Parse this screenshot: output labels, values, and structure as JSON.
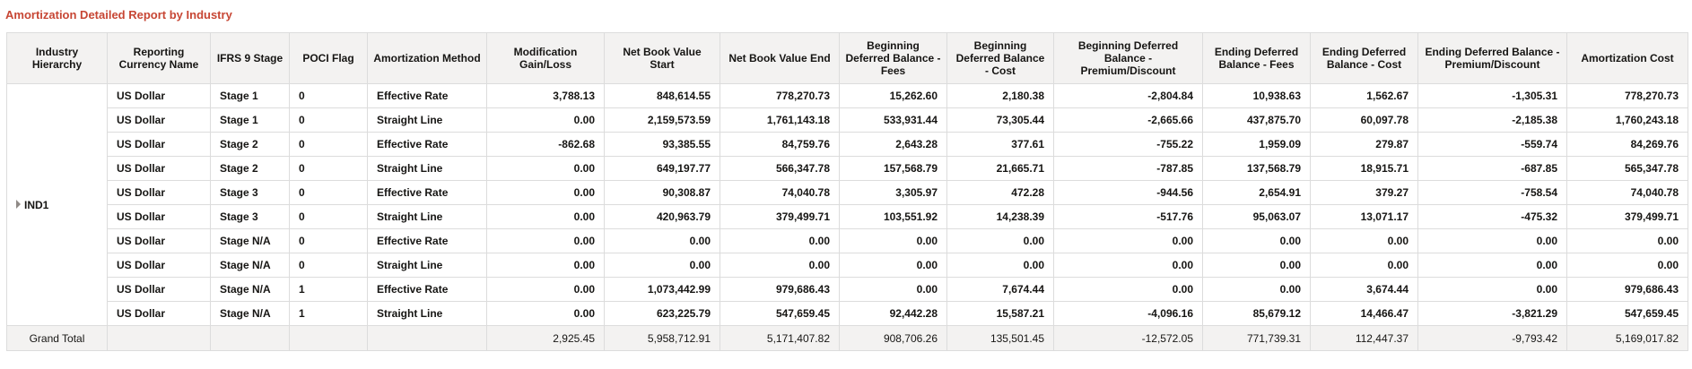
{
  "report": {
    "title": "Amortization Detailed Report by Industry",
    "columns": [
      "Industry Hierarchy",
      "Reporting Currency Name",
      "IFRS 9 Stage",
      "POCI Flag",
      "Amortization Method",
      "Modification Gain/Loss",
      "Net Book Value Start",
      "Net Book Value End",
      "Beginning Deferred Balance - Fees",
      "Beginning Deferred Balance - Cost",
      "Beginning Deferred Balance - Premium/Discount",
      "Ending Deferred Balance - Fees",
      "Ending Deferred Balance - Cost",
      "Ending Deferred Balance - Premium/Discount",
      "Amortization Cost"
    ],
    "group": {
      "label": "IND1",
      "expander_icon": "triangle-right-icon"
    },
    "rows": [
      [
        "US Dollar",
        "Stage 1",
        "0",
        "Effective Rate",
        "3,788.13",
        "848,614.55",
        "778,270.73",
        "15,262.60",
        "2,180.38",
        "-2,804.84",
        "10,938.63",
        "1,562.67",
        "-1,305.31",
        "778,270.73"
      ],
      [
        "US Dollar",
        "Stage 1",
        "0",
        "Straight Line",
        "0.00",
        "2,159,573.59",
        "1,761,143.18",
        "533,931.44",
        "73,305.44",
        "-2,665.66",
        "437,875.70",
        "60,097.78",
        "-2,185.38",
        "1,760,243.18"
      ],
      [
        "US Dollar",
        "Stage 2",
        "0",
        "Effective Rate",
        "-862.68",
        "93,385.55",
        "84,759.76",
        "2,643.28",
        "377.61",
        "-755.22",
        "1,959.09",
        "279.87",
        "-559.74",
        "84,269.76"
      ],
      [
        "US Dollar",
        "Stage 2",
        "0",
        "Straight Line",
        "0.00",
        "649,197.77",
        "566,347.78",
        "157,568.79",
        "21,665.71",
        "-787.85",
        "137,568.79",
        "18,915.71",
        "-687.85",
        "565,347.78"
      ],
      [
        "US Dollar",
        "Stage 3",
        "0",
        "Effective Rate",
        "0.00",
        "90,308.87",
        "74,040.78",
        "3,305.97",
        "472.28",
        "-944.56",
        "2,654.91",
        "379.27",
        "-758.54",
        "74,040.78"
      ],
      [
        "US Dollar",
        "Stage 3",
        "0",
        "Straight Line",
        "0.00",
        "420,963.79",
        "379,499.71",
        "103,551.92",
        "14,238.39",
        "-517.76",
        "95,063.07",
        "13,071.17",
        "-475.32",
        "379,499.71"
      ],
      [
        "US Dollar",
        "Stage N/A",
        "0",
        "Effective Rate",
        "0.00",
        "0.00",
        "0.00",
        "0.00",
        "0.00",
        "0.00",
        "0.00",
        "0.00",
        "0.00",
        "0.00"
      ],
      [
        "US Dollar",
        "Stage N/A",
        "0",
        "Straight Line",
        "0.00",
        "0.00",
        "0.00",
        "0.00",
        "0.00",
        "0.00",
        "0.00",
        "0.00",
        "0.00",
        "0.00"
      ],
      [
        "US Dollar",
        "Stage N/A",
        "1",
        "Effective Rate",
        "0.00",
        "1,073,442.99",
        "979,686.43",
        "0.00",
        "7,674.44",
        "0.00",
        "0.00",
        "3,674.44",
        "0.00",
        "979,686.43"
      ],
      [
        "US Dollar",
        "Stage N/A",
        "1",
        "Straight Line",
        "0.00",
        "623,225.79",
        "547,659.45",
        "92,442.28",
        "15,587.21",
        "-4,096.16",
        "85,679.12",
        "14,466.47",
        "-3,821.29",
        "547,659.45"
      ]
    ],
    "grand_total": {
      "label": "Grand Total",
      "values": [
        "",
        "",
        "",
        "",
        "2,925.45",
        "5,958,712.91",
        "5,171,407.82",
        "908,706.26",
        "135,501.45",
        "-12,572.05",
        "771,739.31",
        "112,447.37",
        "-9,793.42",
        "5,169,017.82"
      ]
    },
    "colors": {
      "title": "#c74634",
      "header_bg": "#f3f2f1",
      "total_bg": "#f3f2f1",
      "grid": "#dcdcdc"
    }
  }
}
